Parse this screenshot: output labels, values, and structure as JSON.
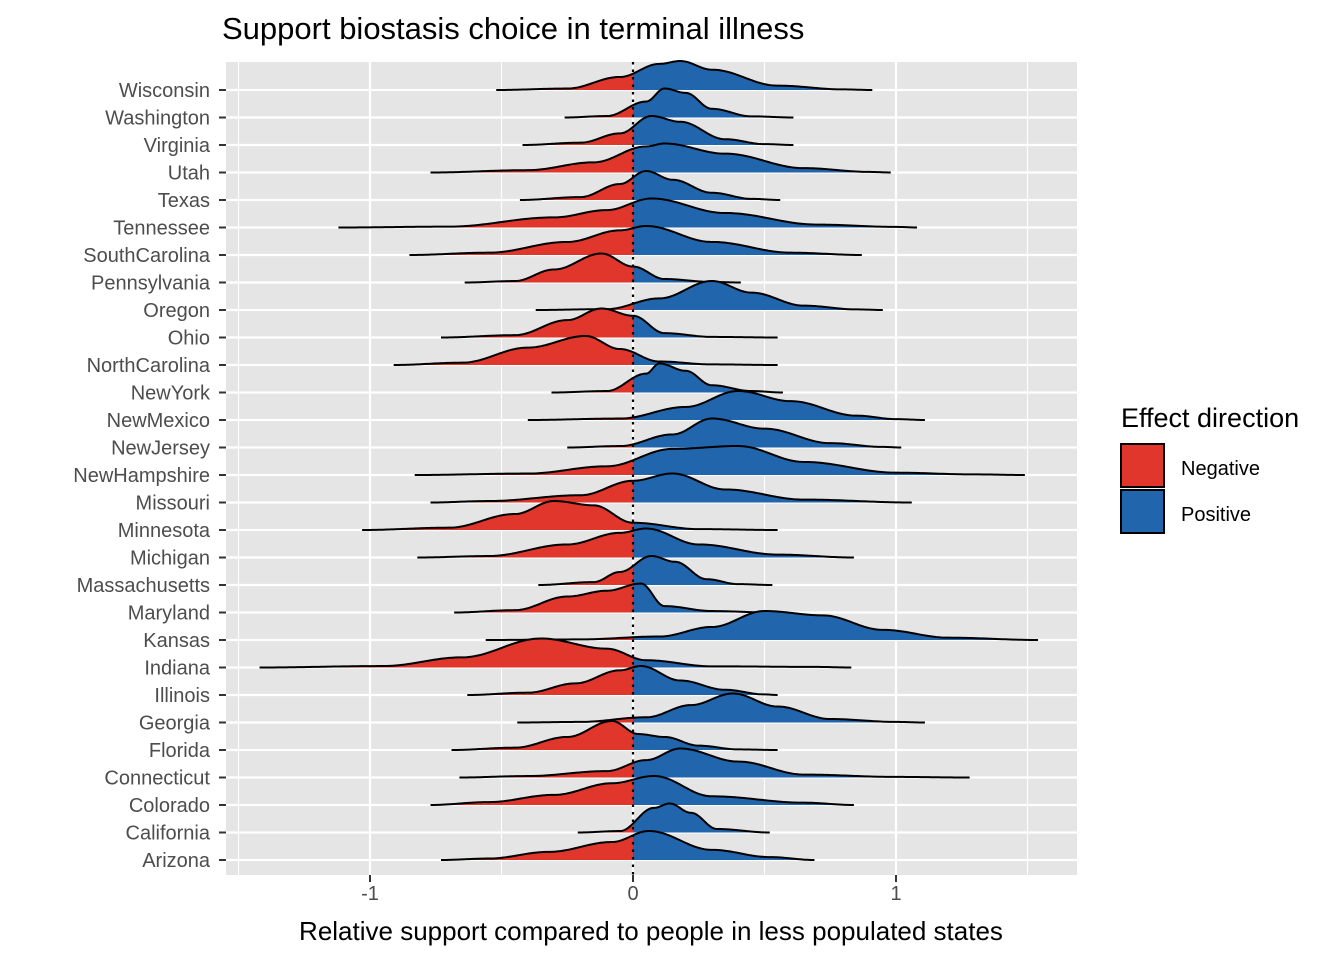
{
  "chart_data": {
    "type": "area",
    "subtype": "ridgeline-density",
    "title": "Support biostasis choice in terminal illness",
    "xlabel": "Relative support compared to people in less populated states",
    "ylabel": "",
    "xlim": [
      -1.5,
      1.65
    ],
    "xticks": [
      -1,
      0,
      1
    ],
    "xtick_labels": [
      "-1",
      "0",
      "1"
    ],
    "reference_line": {
      "x": 0,
      "style": "dotted"
    },
    "grid": true,
    "legend": {
      "title": "Effect direction",
      "position": "right",
      "entries": [
        {
          "label": "Negative",
          "color": "#E0362C"
        },
        {
          "label": "Positive",
          "color": "#2166AC"
        }
      ]
    },
    "categories": [
      "Arizona",
      "California",
      "Colorado",
      "Connecticut",
      "Florida",
      "Georgia",
      "Illinois",
      "Indiana",
      "Kansas",
      "Maryland",
      "Massachusetts",
      "Michigan",
      "Minnesota",
      "Missouri",
      "NewHampshire",
      "NewJersey",
      "NewMexico",
      "NewYork",
      "NorthCarolina",
      "Ohio",
      "Oregon",
      "Pennsylvania",
      "SouthCarolina",
      "Tennessee",
      "Texas",
      "Utah",
      "Virginia",
      "Washington",
      "Wisconsin"
    ],
    "series": [
      {
        "name": "Arizona",
        "range": [
          -0.73,
          0.69
        ],
        "peaks": [
          [
            -0.55,
            0.05
          ],
          [
            -0.32,
            0.28
          ],
          [
            -0.08,
            0.62
          ],
          [
            0.06,
            1.0
          ],
          [
            0.3,
            0.35
          ],
          [
            0.52,
            0.1
          ]
        ]
      },
      {
        "name": "California",
        "range": [
          -0.21,
          0.52
        ],
        "peaks": [
          [
            -0.05,
            0.05
          ],
          [
            0.08,
            0.85
          ],
          [
            0.14,
            1.0
          ],
          [
            0.22,
            0.68
          ],
          [
            0.32,
            0.12
          ]
        ]
      },
      {
        "name": "Colorado",
        "range": [
          -0.77,
          0.84
        ],
        "peaks": [
          [
            -0.55,
            0.1
          ],
          [
            -0.3,
            0.35
          ],
          [
            -0.08,
            0.75
          ],
          [
            0.08,
            1.0
          ],
          [
            0.3,
            0.3
          ],
          [
            0.65,
            0.08
          ]
        ]
      },
      {
        "name": "Connecticut",
        "range": [
          -0.66,
          1.28
        ],
        "peaks": [
          [
            -0.4,
            0.05
          ],
          [
            -0.1,
            0.22
          ],
          [
            0.05,
            0.6
          ],
          [
            0.18,
            1.0
          ],
          [
            0.4,
            0.55
          ],
          [
            0.65,
            0.1
          ],
          [
            1.0,
            0.02
          ]
        ]
      },
      {
        "name": "Florida",
        "range": [
          -0.69,
          0.55
        ],
        "peaks": [
          [
            -0.45,
            0.08
          ],
          [
            -0.25,
            0.45
          ],
          [
            -0.08,
            1.0
          ],
          [
            0.02,
            0.55
          ],
          [
            0.12,
            0.45
          ],
          [
            0.25,
            0.15
          ],
          [
            0.4,
            0.02
          ]
        ]
      },
      {
        "name": "Georgia",
        "range": [
          -0.44,
          1.11
        ],
        "peaks": [
          [
            -0.2,
            0.02
          ],
          [
            0.05,
            0.18
          ],
          [
            0.22,
            0.6
          ],
          [
            0.38,
            1.0
          ],
          [
            0.55,
            0.55
          ],
          [
            0.75,
            0.12
          ],
          [
            1.0,
            0.02
          ]
        ]
      },
      {
        "name": "Illinois",
        "range": [
          -0.63,
          0.55
        ],
        "peaks": [
          [
            -0.4,
            0.08
          ],
          [
            -0.22,
            0.4
          ],
          [
            -0.05,
            0.85
          ],
          [
            0.03,
            1.0
          ],
          [
            0.18,
            0.5
          ],
          [
            0.35,
            0.18
          ],
          [
            0.5,
            0.02
          ]
        ]
      },
      {
        "name": "Indiana",
        "range": [
          -1.42,
          0.83
        ],
        "peaks": [
          [
            -0.95,
            0.05
          ],
          [
            -0.65,
            0.35
          ],
          [
            -0.35,
            1.0
          ],
          [
            -0.1,
            0.65
          ],
          [
            0.05,
            0.25
          ],
          [
            0.3,
            0.04
          ],
          [
            0.7,
            0.02
          ]
        ]
      },
      {
        "name": "Kansas",
        "range": [
          -0.56,
          1.54
        ],
        "peaks": [
          [
            -0.2,
            0.02
          ],
          [
            0.1,
            0.12
          ],
          [
            0.3,
            0.45
          ],
          [
            0.5,
            1.0
          ],
          [
            0.72,
            0.85
          ],
          [
            0.95,
            0.35
          ],
          [
            1.2,
            0.08
          ]
        ]
      },
      {
        "name": "Maryland",
        "range": [
          -0.68,
          0.52
        ],
        "peaks": [
          [
            -0.45,
            0.08
          ],
          [
            -0.25,
            0.55
          ],
          [
            -0.1,
            0.75
          ],
          [
            0.03,
            1.0
          ],
          [
            0.12,
            0.22
          ],
          [
            0.3,
            0.05
          ]
        ]
      },
      {
        "name": "Massachusetts",
        "range": [
          -0.36,
          0.53
        ],
        "peaks": [
          [
            -0.15,
            0.1
          ],
          [
            -0.05,
            0.45
          ],
          [
            0.07,
            1.0
          ],
          [
            0.16,
            0.8
          ],
          [
            0.28,
            0.2
          ],
          [
            0.4,
            0.03
          ]
        ]
      },
      {
        "name": "Michigan",
        "range": [
          -0.82,
          0.84
        ],
        "peaks": [
          [
            -0.55,
            0.05
          ],
          [
            -0.25,
            0.45
          ],
          [
            -0.05,
            0.85
          ],
          [
            0.05,
            1.0
          ],
          [
            0.25,
            0.45
          ],
          [
            0.55,
            0.1
          ]
        ]
      },
      {
        "name": "Minnesota",
        "range": [
          -1.03,
          0.55
        ],
        "peaks": [
          [
            -0.7,
            0.08
          ],
          [
            -0.45,
            0.55
          ],
          [
            -0.3,
            1.0
          ],
          [
            -0.15,
            0.85
          ],
          [
            0.0,
            0.25
          ],
          [
            0.25,
            0.03
          ]
        ]
      },
      {
        "name": "Missouri",
        "range": [
          -0.77,
          1.06
        ],
        "peaks": [
          [
            -0.55,
            0.05
          ],
          [
            -0.2,
            0.25
          ],
          [
            0.0,
            0.75
          ],
          [
            0.15,
            1.0
          ],
          [
            0.35,
            0.45
          ],
          [
            0.65,
            0.1
          ]
        ]
      },
      {
        "name": "NewHampshire",
        "range": [
          -0.83,
          1.49
        ],
        "peaks": [
          [
            -0.4,
            0.05
          ],
          [
            -0.1,
            0.3
          ],
          [
            0.15,
            0.9
          ],
          [
            0.4,
            1.0
          ],
          [
            0.65,
            0.45
          ],
          [
            1.0,
            0.08
          ],
          [
            1.3,
            0.02
          ]
        ]
      },
      {
        "name": "NewJersey",
        "range": [
          -0.25,
          1.02
        ],
        "peaks": [
          [
            -0.05,
            0.05
          ],
          [
            0.15,
            0.45
          ],
          [
            0.3,
            1.0
          ],
          [
            0.5,
            0.65
          ],
          [
            0.75,
            0.15
          ],
          [
            0.95,
            0.02
          ]
        ]
      },
      {
        "name": "NewMexico",
        "range": [
          -0.4,
          1.11
        ],
        "peaks": [
          [
            -0.05,
            0.05
          ],
          [
            0.2,
            0.45
          ],
          [
            0.4,
            1.0
          ],
          [
            0.6,
            0.65
          ],
          [
            0.85,
            0.15
          ],
          [
            1.0,
            0.03
          ]
        ]
      },
      {
        "name": "NewYork",
        "range": [
          -0.31,
          0.57
        ],
        "peaks": [
          [
            -0.1,
            0.05
          ],
          [
            0.05,
            0.65
          ],
          [
            0.1,
            1.0
          ],
          [
            0.2,
            0.75
          ],
          [
            0.3,
            0.25
          ],
          [
            0.45,
            0.05
          ]
        ]
      },
      {
        "name": "NorthCarolina",
        "range": [
          -0.91,
          0.55
        ],
        "peaks": [
          [
            -0.65,
            0.08
          ],
          [
            -0.4,
            0.6
          ],
          [
            -0.18,
            1.0
          ],
          [
            -0.05,
            0.55
          ],
          [
            0.1,
            0.12
          ],
          [
            0.3,
            0.02
          ]
        ]
      },
      {
        "name": "Ohio",
        "range": [
          -0.73,
          0.55
        ],
        "peaks": [
          [
            -0.45,
            0.08
          ],
          [
            -0.25,
            0.6
          ],
          [
            -0.12,
            1.0
          ],
          [
            0.0,
            0.75
          ],
          [
            0.12,
            0.15
          ],
          [
            0.3,
            0.02
          ]
        ]
      },
      {
        "name": "Oregon",
        "range": [
          -0.37,
          0.95
        ],
        "peaks": [
          [
            -0.1,
            0.03
          ],
          [
            0.1,
            0.4
          ],
          [
            0.3,
            1.0
          ],
          [
            0.45,
            0.6
          ],
          [
            0.65,
            0.15
          ],
          [
            0.85,
            0.02
          ]
        ]
      },
      {
        "name": "Pennsylvania",
        "range": [
          -0.64,
          0.41
        ],
        "peaks": [
          [
            -0.45,
            0.05
          ],
          [
            -0.3,
            0.45
          ],
          [
            -0.12,
            1.0
          ],
          [
            0.0,
            0.55
          ],
          [
            0.12,
            0.12
          ],
          [
            0.3,
            0.02
          ]
        ]
      },
      {
        "name": "SouthCarolina",
        "range": [
          -0.85,
          0.87
        ],
        "peaks": [
          [
            -0.55,
            0.08
          ],
          [
            -0.25,
            0.45
          ],
          [
            -0.05,
            0.85
          ],
          [
            0.05,
            1.0
          ],
          [
            0.3,
            0.45
          ],
          [
            0.6,
            0.08
          ]
        ]
      },
      {
        "name": "Tennessee",
        "range": [
          -1.12,
          1.08
        ],
        "peaks": [
          [
            -0.7,
            0.03
          ],
          [
            -0.3,
            0.35
          ],
          [
            -0.1,
            0.6
          ],
          [
            0.07,
            1.0
          ],
          [
            0.35,
            0.5
          ],
          [
            0.7,
            0.1
          ],
          [
            1.0,
            0.02
          ]
        ]
      },
      {
        "name": "Texas",
        "range": [
          -0.43,
          0.56
        ],
        "peaks": [
          [
            -0.2,
            0.1
          ],
          [
            -0.05,
            0.55
          ],
          [
            0.05,
            1.0
          ],
          [
            0.15,
            0.7
          ],
          [
            0.3,
            0.25
          ],
          [
            0.45,
            0.04
          ]
        ]
      },
      {
        "name": "Utah",
        "range": [
          -0.77,
          0.98
        ],
        "peaks": [
          [
            -0.4,
            0.08
          ],
          [
            -0.15,
            0.35
          ],
          [
            0.05,
            0.9
          ],
          [
            0.12,
            1.0
          ],
          [
            0.35,
            0.65
          ],
          [
            0.65,
            0.15
          ],
          [
            0.9,
            0.02
          ]
        ]
      },
      {
        "name": "Virginia",
        "range": [
          -0.42,
          0.61
        ],
        "peaks": [
          [
            -0.2,
            0.08
          ],
          [
            -0.05,
            0.4
          ],
          [
            0.07,
            1.0
          ],
          [
            0.18,
            0.8
          ],
          [
            0.35,
            0.2
          ],
          [
            0.5,
            0.03
          ]
        ]
      },
      {
        "name": "Washington",
        "range": [
          -0.26,
          0.61
        ],
        "peaks": [
          [
            -0.1,
            0.05
          ],
          [
            0.05,
            0.55
          ],
          [
            0.12,
            1.0
          ],
          [
            0.2,
            0.85
          ],
          [
            0.3,
            0.3
          ],
          [
            0.45,
            0.04
          ]
        ]
      },
      {
        "name": "Wisconsin",
        "range": [
          -0.52,
          0.91
        ],
        "peaks": [
          [
            -0.25,
            0.05
          ],
          [
            -0.05,
            0.45
          ],
          [
            0.1,
            0.9
          ],
          [
            0.18,
            1.0
          ],
          [
            0.3,
            0.7
          ],
          [
            0.55,
            0.15
          ],
          [
            0.8,
            0.02
          ]
        ]
      }
    ]
  }
}
